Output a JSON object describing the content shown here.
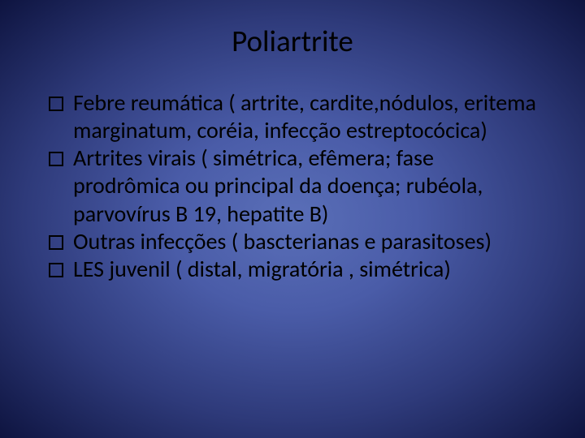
{
  "slide": {
    "title": "Poliartrite",
    "title_color": "#000000",
    "title_fontsize": 37,
    "background": {
      "type": "radial-gradient",
      "center_color": "#5a6fb8",
      "mid_color": "#4a5ca8",
      "outer_color": "#2e3a7a",
      "edge_color": "#0e1440"
    },
    "bullet_marker": {
      "type": "hollow-square",
      "border_color": "#000000",
      "border_width": 2.5,
      "size": 18
    },
    "body_text_color": "#000000",
    "body_fontsize": 28,
    "body_line_height": 1.22,
    "items": [
      {
        "lead": "Febre reumática",
        "rest": " ( artrite, cardite,nódulos, eritema marginatum, coréia, infecção estreptocócica)"
      },
      {
        "lead": "Artrites virais",
        "rest": " ( simétrica, efêmera; fase prodrômica ou principal da doença; rubéola, parvovírus B 19, hepatite B)"
      },
      {
        "lead": "Outras infecções",
        "rest": " ( bascterianas e parasitoses)"
      },
      {
        "lead": "LES juvenil",
        "rest": " ( distal, migratória , simétrica)"
      }
    ]
  }
}
